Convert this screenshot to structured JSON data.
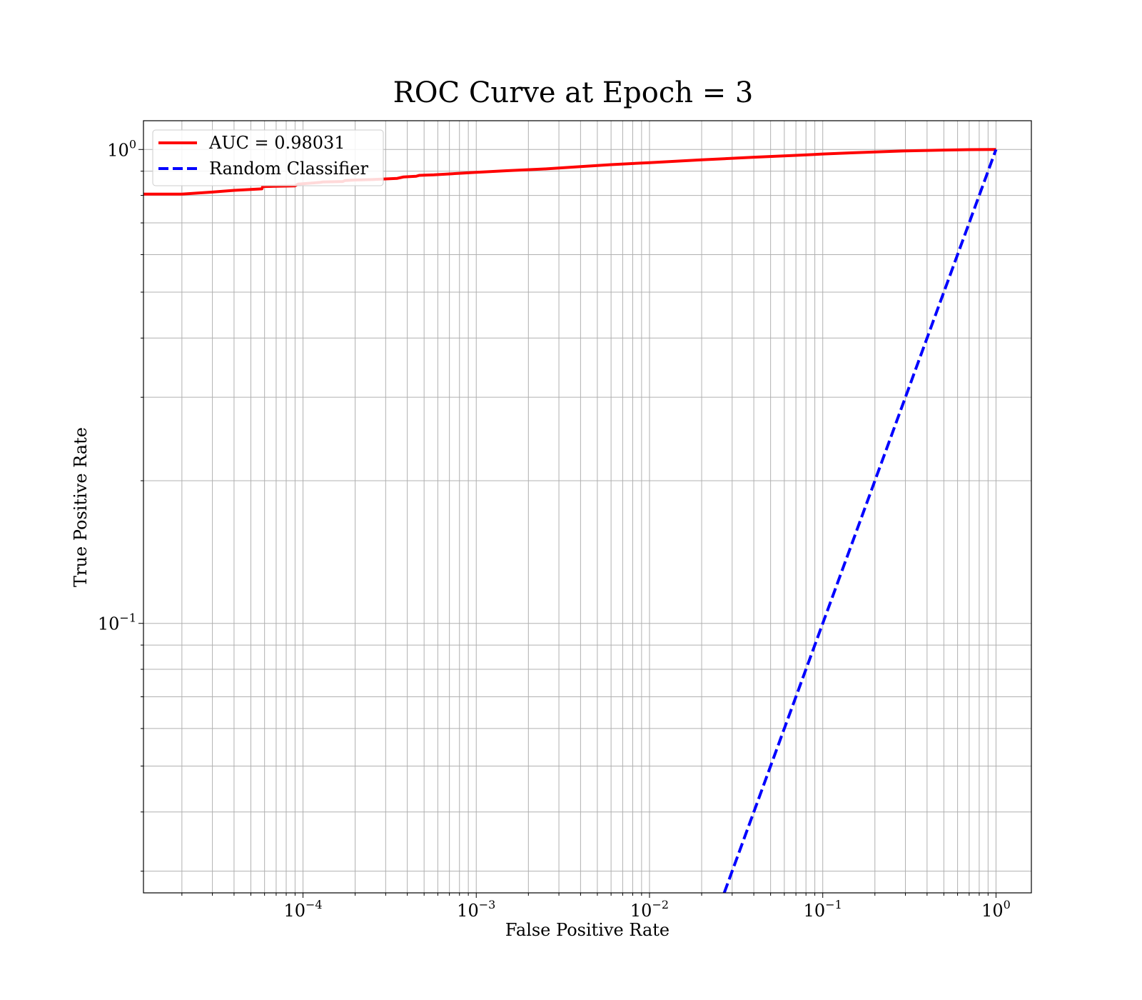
{
  "chart_data": {
    "type": "line",
    "title": "ROC Curve at Epoch = 3",
    "xlabel": "False Positive Rate",
    "ylabel": "True Positive Rate",
    "xscale": "log",
    "yscale": "log",
    "xlim": [
      1.2e-05,
      1.6
    ],
    "ylim": [
      0.027,
      1.15
    ],
    "grid": true,
    "grid_minor": true,
    "legend_position": "upper-left",
    "x_ticks": [
      {
        "value": 0.0001,
        "base": "10",
        "exp": "−4"
      },
      {
        "value": 0.001,
        "base": "10",
        "exp": "−3"
      },
      {
        "value": 0.01,
        "base": "10",
        "exp": "−2"
      },
      {
        "value": 0.1,
        "base": "10",
        "exp": "−1"
      },
      {
        "value": 1,
        "base": "10",
        "exp": "0"
      }
    ],
    "y_ticks": [
      {
        "value": 0.1,
        "base": "10",
        "exp": "−1"
      },
      {
        "value": 1,
        "base": "10",
        "exp": "0"
      }
    ],
    "series": [
      {
        "name": "AUC = 0.98031",
        "color": "#ff0000",
        "style": "solid",
        "x": [
          1.2e-05,
          2e-05,
          3e-05,
          4e-05,
          5.8e-05,
          5.85e-05,
          9e-05,
          9.35e-05,
          0.00011,
          0.000125,
          0.00013,
          0.00017,
          0.000175,
          0.0002,
          0.00025,
          0.00035,
          0.00038,
          0.00045,
          0.00047,
          0.00057,
          0.0007,
          0.001,
          0.0015,
          0.0025,
          0.004,
          0.006,
          0.01,
          0.02,
          0.04,
          0.07,
          0.1,
          0.15,
          0.2,
          0.3,
          0.5,
          0.7,
          1.0
        ],
        "y": [
          0.805,
          0.805,
          0.813,
          0.82,
          0.826,
          0.835,
          0.838,
          0.845,
          0.849,
          0.852,
          0.854,
          0.856,
          0.86,
          0.862,
          0.864,
          0.869,
          0.875,
          0.878,
          0.882,
          0.884,
          0.888,
          0.895,
          0.902,
          0.91,
          0.92,
          0.929,
          0.938,
          0.951,
          0.963,
          0.972,
          0.978,
          0.984,
          0.988,
          0.993,
          0.997,
          0.999,
          1.0
        ]
      },
      {
        "name": "Random Classifier",
        "color": "#0000ff",
        "style": "dashed",
        "x": [
          0.027,
          1.0
        ],
        "y": [
          0.027,
          1.0
        ]
      }
    ]
  }
}
